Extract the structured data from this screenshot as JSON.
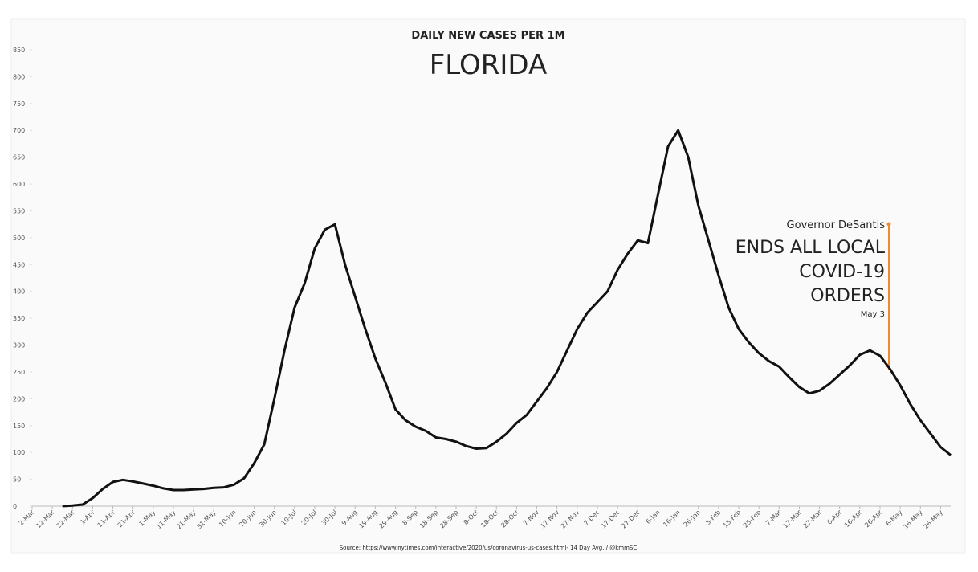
{
  "chart_data": {
    "type": "line",
    "subtitle": "DAILY NEW CASES PER 1M",
    "title": "FLORIDA",
    "source": "Source: https://www.nytimes.com/interactive/2020/us/coronavirus-us-cases.html- 14 Day Avg. / @kmmSC",
    "annotation": {
      "lines": [
        "Governor DeSantis",
        "ENDS ALL LOCAL",
        "COVID-19",
        "ORDERS"
      ],
      "date": "May 3"
    },
    "categories": [
      "2-Mar",
      null,
      "12-Mar",
      null,
      "22-Mar",
      null,
      "1-Apr",
      null,
      "11-Apr",
      null,
      "21-Apr",
      null,
      "1-May",
      null,
      "11-May",
      null,
      "21-May",
      null,
      "31-May",
      null,
      "10-Jun",
      null,
      "20-Jun",
      null,
      "30-Jun",
      null,
      "10-Jul",
      null,
      "20-Jul",
      null,
      "30-Jul",
      null,
      "9-Aug",
      null,
      "19-Aug",
      null,
      "29-Aug",
      null,
      "8-Sep",
      null,
      "18-Sep",
      null,
      "28-Sep",
      null,
      "8-Oct",
      null,
      "18-Oct",
      null,
      "28-Oct",
      null,
      "7-Nov",
      null,
      "17-Nov",
      null,
      "27-Nov",
      null,
      "7-Dec",
      null,
      "17-Dec",
      null,
      "27-Dec",
      null,
      "6-Jan",
      null,
      "16-Jan",
      null,
      "26-Jan",
      null,
      "5-Feb",
      null,
      "15-Feb",
      null,
      "25-Feb",
      null,
      "7-Mar",
      null,
      "17-Mar",
      null,
      "27-Mar",
      null,
      "6-Apr",
      null,
      "16-Apr",
      null,
      "26-Apr",
      null,
      "6-May",
      null,
      "16-May",
      null,
      "26-May",
      null
    ],
    "series": [
      {
        "name": "Daily new cases per 1M",
        "color": "#111111",
        "values": [
          null,
          null,
          null,
          0,
          1,
          3,
          15,
          32,
          45,
          49,
          46,
          42,
          38,
          33,
          30,
          30,
          31,
          32,
          34,
          35,
          40,
          52,
          80,
          115,
          200,
          290,
          370,
          415,
          480,
          515,
          525,
          450,
          390,
          330,
          275,
          230,
          180,
          160,
          148,
          140,
          128,
          125,
          120,
          112,
          107,
          108,
          120,
          135,
          155,
          170,
          195,
          220,
          250,
          290,
          330,
          360,
          380,
          400,
          440,
          470,
          495,
          490,
          580,
          670,
          700,
          650,
          560,
          495,
          430,
          370,
          330,
          305,
          285,
          270,
          260,
          240,
          222,
          210,
          215,
          228,
          245,
          262,
          282,
          290,
          280,
          255,
          225,
          190,
          160,
          135,
          110,
          95
        ]
      }
    ],
    "ylim": [
      0,
      850
    ],
    "yticks": [
      0,
      50,
      100,
      150,
      200,
      250,
      300,
      350,
      400,
      450,
      500,
      550,
      600,
      650,
      700,
      750,
      800,
      850
    ],
    "grid": false
  }
}
